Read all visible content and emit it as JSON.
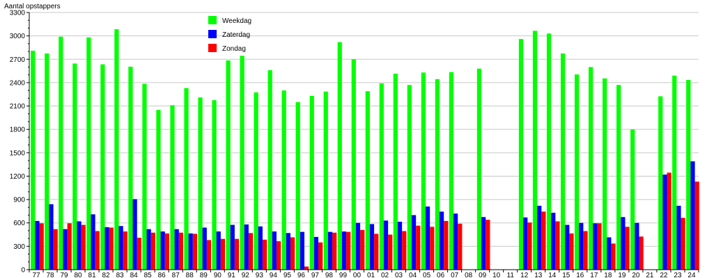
{
  "chart_data": {
    "type": "bar",
    "ylabel": "Aantal opstappers",
    "ylim": [
      0,
      3300
    ],
    "yticks": [
      0,
      300,
      600,
      900,
      1200,
      1500,
      1800,
      2100,
      2400,
      2700,
      3000,
      3300
    ],
    "grid": true,
    "legend_placement": "top-left",
    "categories": [
      "77",
      "78",
      "79",
      "80",
      "81",
      "82",
      "83",
      "84",
      "85",
      "86",
      "87",
      "88",
      "89",
      "90",
      "91",
      "92",
      "93",
      "94",
      "95",
      "96",
      "97",
      "98",
      "99",
      "00",
      "01",
      "02",
      "03",
      "04",
      "05",
      "06",
      "07",
      "08",
      "09",
      "10",
      "11",
      "12",
      "13",
      "14",
      "15",
      "16",
      "17",
      "18",
      "19",
      "20",
      "21",
      "22",
      "23",
      "24"
    ],
    "series": [
      {
        "name": "Weekdag",
        "color": "#00ff00",
        "values": [
          2810,
          2775,
          2990,
          2645,
          2980,
          2635,
          3085,
          2605,
          2385,
          2050,
          2110,
          2330,
          2210,
          2175,
          2685,
          2745,
          2275,
          2560,
          2300,
          2150,
          2230,
          2285,
          2920,
          2700,
          2290,
          2390,
          2515,
          2370,
          2530,
          2445,
          2535,
          0,
          2580,
          0,
          0,
          2960,
          3065,
          3030,
          2775,
          2505,
          2600,
          2455,
          2370,
          1800,
          0,
          2225,
          2490,
          2435
        ]
      },
      {
        "name": "Zaterdag",
        "color": "#0000ff",
        "values": [
          625,
          840,
          520,
          620,
          710,
          545,
          560,
          905,
          520,
          490,
          520,
          465,
          540,
          490,
          575,
          580,
          555,
          490,
          470,
          485,
          420,
          485,
          490,
          600,
          585,
          630,
          615,
          700,
          810,
          745,
          720,
          0,
          675,
          0,
          0,
          670,
          820,
          730,
          575,
          600,
          595,
          415,
          675,
          600,
          0,
          1220,
          820,
          1390
        ]
      },
      {
        "name": "Zondag",
        "color": "#ff0000",
        "values": [
          595,
          520,
          595,
          575,
          495,
          540,
          490,
          410,
          475,
          465,
          475,
          460,
          380,
          395,
          395,
          470,
          385,
          365,
          415,
          40,
          350,
          475,
          485,
          510,
          460,
          450,
          495,
          565,
          550,
          625,
          590,
          0,
          640,
          0,
          0,
          605,
          745,
          620,
          465,
          495,
          595,
          335,
          550,
          425,
          0,
          1245,
          665,
          1130
        ]
      }
    ]
  }
}
